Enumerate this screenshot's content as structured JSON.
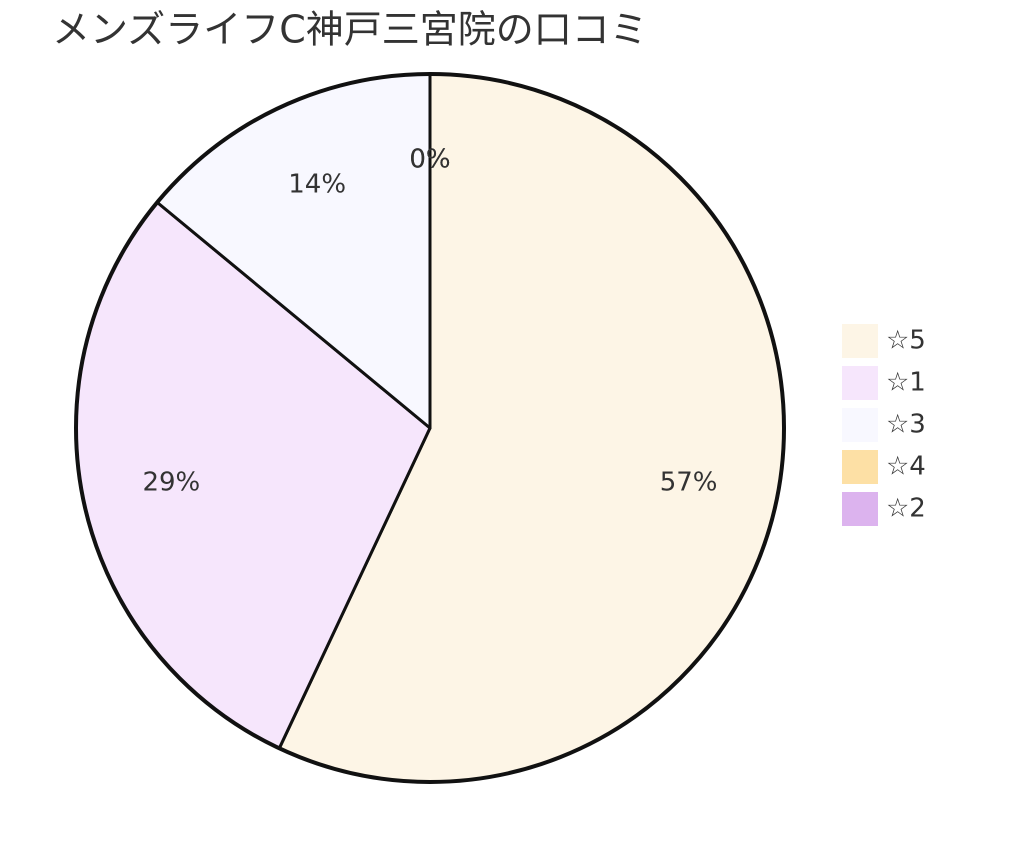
{
  "chart_data": {
    "type": "pie",
    "title": "メンズライフC神戸三宮院の口コミ",
    "categories": [
      "☆5",
      "☆1",
      "☆3",
      "☆4",
      "☆2"
    ],
    "values": [
      57,
      29,
      14,
      0,
      0
    ],
    "value_labels": [
      "57%",
      "29%",
      "14%",
      "0%",
      "0%"
    ],
    "colors": [
      "#fdf5e6",
      "#f6e6fc",
      "#f8f8ff",
      "#fde0a5",
      "#dcb3ee"
    ],
    "legend": "right"
  }
}
